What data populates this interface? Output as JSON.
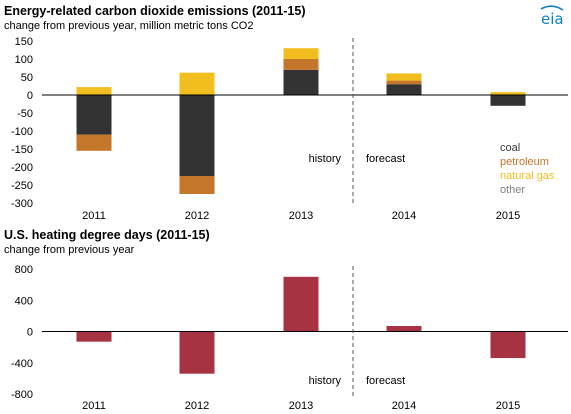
{
  "logo": {
    "text": "eia"
  },
  "colors": {
    "coal": "#333333",
    "petroleum": "#c4762b",
    "natural_gas": "#f2bd1e",
    "other": "#808080",
    "hdd": "#a63242",
    "zero_line": "#000000",
    "divider": "#555555"
  },
  "chart_data": [
    {
      "type": "bar",
      "stacked": true,
      "title": "Energy-related carbon dioxide emissions  (2011-15)",
      "subtitle": "change from previous  year, million metric tons CO2",
      "categories": [
        "2011",
        "2012",
        "2013",
        "2014",
        "2015"
      ],
      "series": [
        {
          "name": "coal",
          "color_key": "coal",
          "values": [
            -110,
            -225,
            70,
            30,
            -30
          ]
        },
        {
          "name": "petroleum",
          "color_key": "petroleum",
          "values": [
            -45,
            -50,
            30,
            10,
            0
          ]
        },
        {
          "name": "natural gas",
          "color_key": "natural_gas",
          "values": [
            22,
            62,
            30,
            20,
            8
          ]
        },
        {
          "name": "other",
          "color_key": "other",
          "values": [
            0,
            0,
            0,
            0,
            0
          ]
        }
      ],
      "ylim": [
        -300,
        150
      ],
      "yticks": [
        150,
        100,
        50,
        0,
        -50,
        -100,
        -150,
        -200,
        -250,
        -300
      ],
      "legend_position": "bottom-right",
      "annotations": {
        "history": "history",
        "forecast": "forecast"
      },
      "grid": false
    },
    {
      "type": "bar",
      "title": "U.S. heating degree days (2011-15)",
      "subtitle": "change from previous  year",
      "categories": [
        "2011",
        "2012",
        "2013",
        "2014",
        "2015"
      ],
      "series": [
        {
          "color_key": "hdd",
          "values": [
            -130,
            -540,
            700,
            70,
            -340
          ]
        }
      ],
      "ylim": [
        -800,
        800
      ],
      "yticks": [
        800,
        400,
        0,
        -400,
        -800
      ],
      "annotations": {
        "history": "history",
        "forecast": "forecast"
      },
      "grid": false
    }
  ]
}
